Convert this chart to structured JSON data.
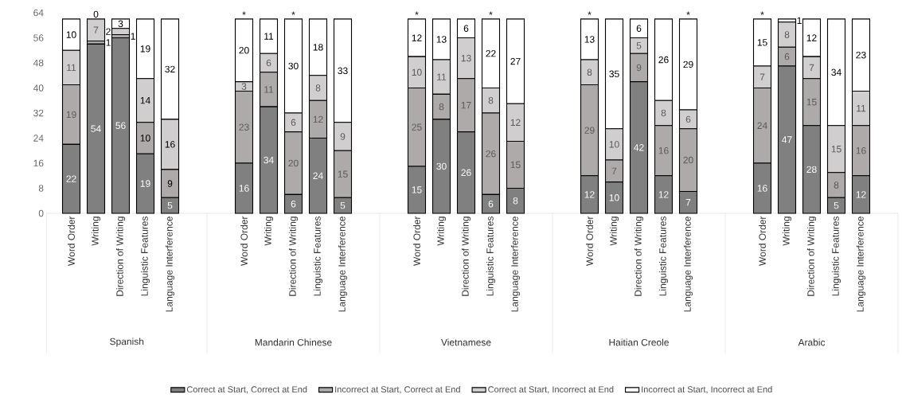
{
  "chart_data": [
    {
      "type": "bar",
      "stacked": true,
      "title": "Spanish",
      "categories": [
        "Word Order",
        "Writing",
        "Direction of Writing",
        "Linguistic Features",
        "Language Interference"
      ],
      "ylim": [
        0,
        64
      ],
      "yticks": [
        0,
        8,
        16,
        24,
        32,
        40,
        48,
        56,
        64
      ],
      "data_labels": true,
      "legend": "bottom",
      "series": [
        {
          "name": "Correct at Start, Correct at End",
          "color": "#808080",
          "values": [
            22,
            54,
            56,
            19,
            5
          ]
        },
        {
          "name": "Incorrect at Start, Correct at End",
          "color": "#aeaaaa",
          "values": [
            19,
            1,
            1,
            10,
            9
          ]
        },
        {
          "name": "Correct at Start, Incorrect at End",
          "color": "#d0cece",
          "values": [
            11,
            7,
            2,
            14,
            16
          ]
        },
        {
          "name": "Incorrect at Start, Incorrect at End",
          "color": "#ffffff",
          "values": [
            10,
            0,
            3,
            19,
            32
          ]
        }
      ]
    },
    {
      "type": "bar",
      "stacked": true,
      "title": "Mandarin Chinese",
      "categories": [
        "Word Order",
        "Writing",
        "Direction of Writing",
        "Linguistic Features",
        "Language Interference"
      ],
      "ylim": [
        0,
        64
      ],
      "yticks": [
        0,
        8,
        16,
        24,
        32,
        40,
        48,
        56,
        64
      ],
      "data_labels": true,
      "tick_labels": "x",
      "annotations": [
        {
          "text": "*",
          "x": "Word Order",
          "y": 62
        },
        {
          "text": "*",
          "x": "Direction of Writing",
          "y": 62
        }
      ],
      "series": [
        {
          "color": "#808080",
          "values": [
            16,
            34,
            6,
            24,
            5
          ]
        },
        {
          "color": "#aeaaaa",
          "values": [
            23,
            11,
            20,
            12,
            15
          ]
        },
        {
          "color": "#d0cece",
          "values": [
            3,
            6,
            6,
            8,
            9
          ]
        },
        {
          "color": "#ffffff",
          "values": [
            20,
            11,
            30,
            18,
            33
          ]
        }
      ]
    },
    {
      "type": "bar",
      "stacked": true,
      "title": "Vietnamese",
      "categories": [
        "Word Order",
        "Writing",
        "Direction of Writing",
        "Linguistic Features",
        "Language Interference"
      ],
      "ylim": [
        0,
        64
      ],
      "yticks": [
        0,
        8,
        16,
        24,
        32,
        40,
        48,
        56,
        64
      ],
      "data_labels": true,
      "tick_labels": "x",
      "annotations": [
        {
          "text": "*",
          "x": "Word Order",
          "y": 62
        },
        {
          "text": "*",
          "x": "Linguistic Features",
          "y": 62
        }
      ],
      "series": [
        {
          "color": "#808080",
          "values": [
            15,
            30,
            26,
            6,
            8
          ]
        },
        {
          "color": "#aeaaaa",
          "values": [
            25,
            8,
            17,
            26,
            15
          ]
        },
        {
          "color": "#d0cece",
          "values": [
            10,
            11,
            13,
            8,
            12
          ]
        },
        {
          "color": "#ffffff",
          "values": [
            12,
            13,
            6,
            22,
            27
          ]
        }
      ]
    },
    {
      "type": "bar",
      "stacked": true,
      "title": "Haitian Creole",
      "categories": [
        "Word Order",
        "Writing",
        "Direction of Writing",
        "Linguistic Features",
        "Language Interference"
      ],
      "ylim": [
        0,
        64
      ],
      "yticks": [
        0,
        8,
        16,
        24,
        32,
        40,
        48,
        56,
        64
      ],
      "data_labels": true,
      "tick_labels": "x",
      "annotations": [
        {
          "text": "*",
          "x": "Word Order",
          "y": 62
        },
        {
          "text": "*",
          "x": "Language Interference",
          "y": 62
        }
      ],
      "series": [
        {
          "color": "#808080",
          "values": [
            12,
            10,
            42,
            12,
            7
          ]
        },
        {
          "color": "#aeaaaa",
          "values": [
            29,
            7,
            9,
            16,
            20
          ]
        },
        {
          "color": "#d0cece",
          "values": [
            8,
            10,
            5,
            8,
            6
          ]
        },
        {
          "color": "#ffffff",
          "values": [
            13,
            35,
            6,
            26,
            29
          ]
        }
      ]
    },
    {
      "type": "bar",
      "stacked": true,
      "title": "Arabic",
      "categories": [
        "Word Order",
        "Writing",
        "Direction of Writing",
        "Linguistic Features",
        "Language Interference"
      ],
      "ylim": [
        0,
        64
      ],
      "yticks": [
        0,
        8,
        16,
        24,
        32,
        40,
        48,
        56,
        64
      ],
      "data_labels": true,
      "tick_labels": "x",
      "annotations": [
        {
          "text": "*",
          "x": "Word Order",
          "y": 62
        }
      ],
      "series": [
        {
          "color": "#808080",
          "values": [
            16,
            47,
            28,
            5,
            12
          ]
        },
        {
          "color": "#aeaaaa",
          "values": [
            24,
            6,
            15,
            8,
            16
          ]
        },
        {
          "color": "#d0cece",
          "values": [
            7,
            8,
            7,
            15,
            11
          ]
        },
        {
          "color": "#ffffff",
          "values": [
            15,
            1,
            12,
            34,
            23
          ]
        }
      ]
    }
  ]
}
